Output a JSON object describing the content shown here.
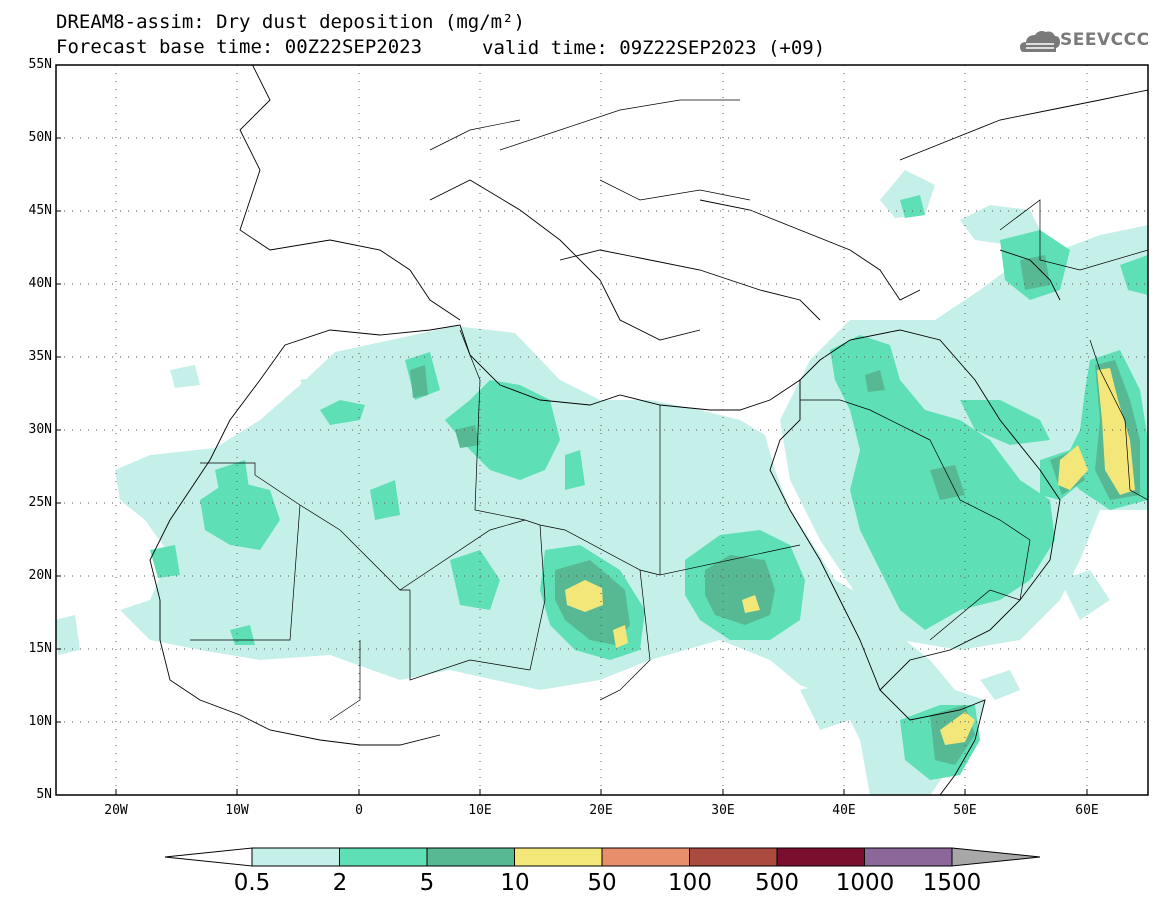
{
  "header": {
    "title_line1": "DREAM8-assim: Dry dust deposition (mg/m²)",
    "title_line2": "Forecast base time: 00Z22SEP2023",
    "valid_time": "valid time: 09Z22SEP2023 (+09)",
    "logo_text": "SEEVCCC"
  },
  "map": {
    "lat_range": [
      5,
      55
    ],
    "lon_range": [
      -25,
      65
    ],
    "lat_labels": [
      "55N",
      "50N",
      "45N",
      "40N",
      "35N",
      "30N",
      "25N",
      "20N",
      "15N",
      "10N",
      "5N"
    ],
    "lon_labels": [
      "20W",
      "10W",
      "0",
      "10E",
      "20E",
      "30E",
      "40E",
      "50E",
      "60E"
    ],
    "ocean_color": "#ffffff",
    "border_color": "#000000"
  },
  "colorbar": {
    "labels": [
      "0.5",
      "2",
      "5",
      "10",
      "50",
      "100",
      "500",
      "1000",
      "1500"
    ],
    "colors": [
      "#c5f0ea",
      "#5fdfb6",
      "#57b894",
      "#f3e77a",
      "#e88e6b",
      "#ab4a3e",
      "#7b0d2e",
      "#8c6799",
      "#a8a8a8"
    ]
  }
}
